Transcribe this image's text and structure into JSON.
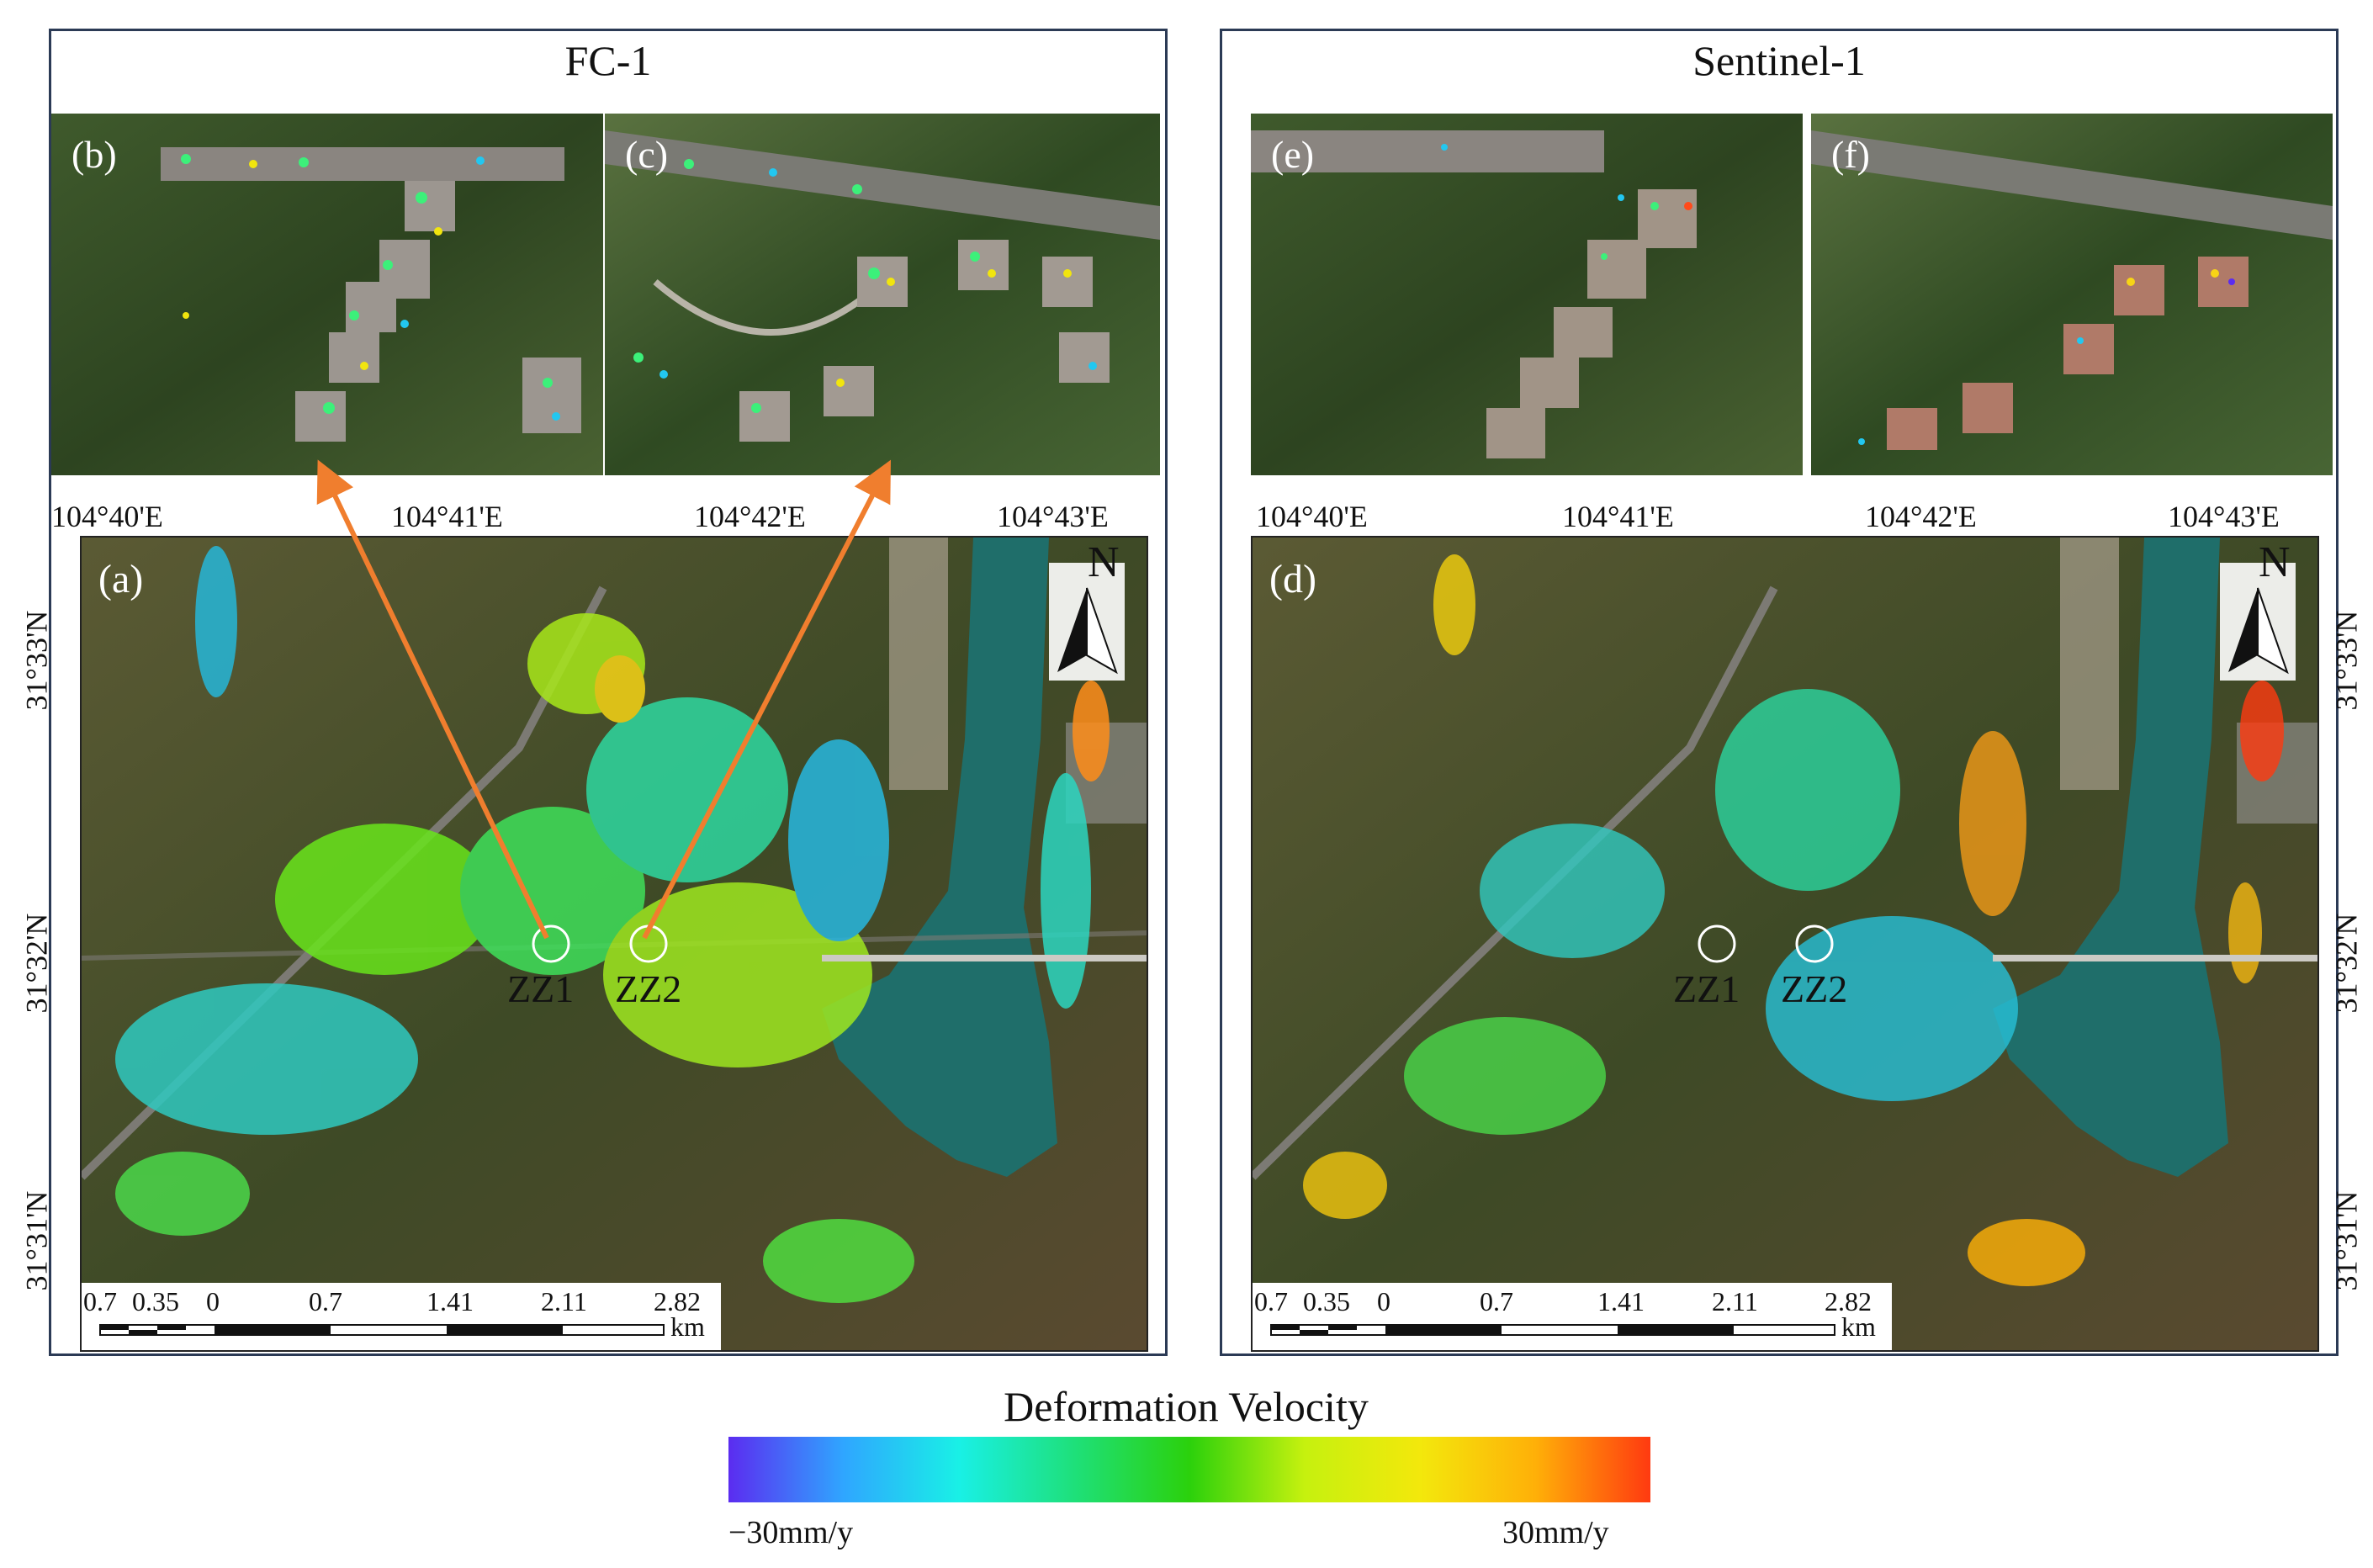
{
  "panels": [
    {
      "title": "FC-1",
      "insets": [
        "(b)",
        "(c)"
      ],
      "map_label": "(a)",
      "sites": [
        "ZZ1",
        "ZZ2"
      ]
    },
    {
      "title": "Sentinel-1",
      "insets": [
        "(e)",
        "(f)"
      ],
      "map_label": "(d)",
      "sites": [
        "ZZ1",
        "ZZ2"
      ]
    }
  ],
  "longitude_ticks": [
    "104°40'E",
    "104°41'E",
    "104°42'E",
    "104°43'E"
  ],
  "latitude_ticks": [
    "31°33'N",
    "31°32'N",
    "31°31'N"
  ],
  "scale_bar": {
    "ticks": [
      "0.7",
      "0.35",
      "0",
      "0.7",
      "1.41",
      "2.11",
      "2.82"
    ],
    "unit": "km"
  },
  "north_label": "N",
  "legend": {
    "title": "Deformation Velocity",
    "min_label": "−30mm/y",
    "max_label": "30mm/y",
    "colors": [
      "#5b2cf0",
      "#2fa6ff",
      "#19f0e6",
      "#1ee07a",
      "#2bd10c",
      "#c6f10e",
      "#f3e80c",
      "#ffb008",
      "#ff3a10"
    ]
  },
  "colors": {
    "frame": "#2b3a55",
    "arrow": "#f07e2e",
    "vegetation": "#3a4d28",
    "river": "#1f6e6a"
  }
}
